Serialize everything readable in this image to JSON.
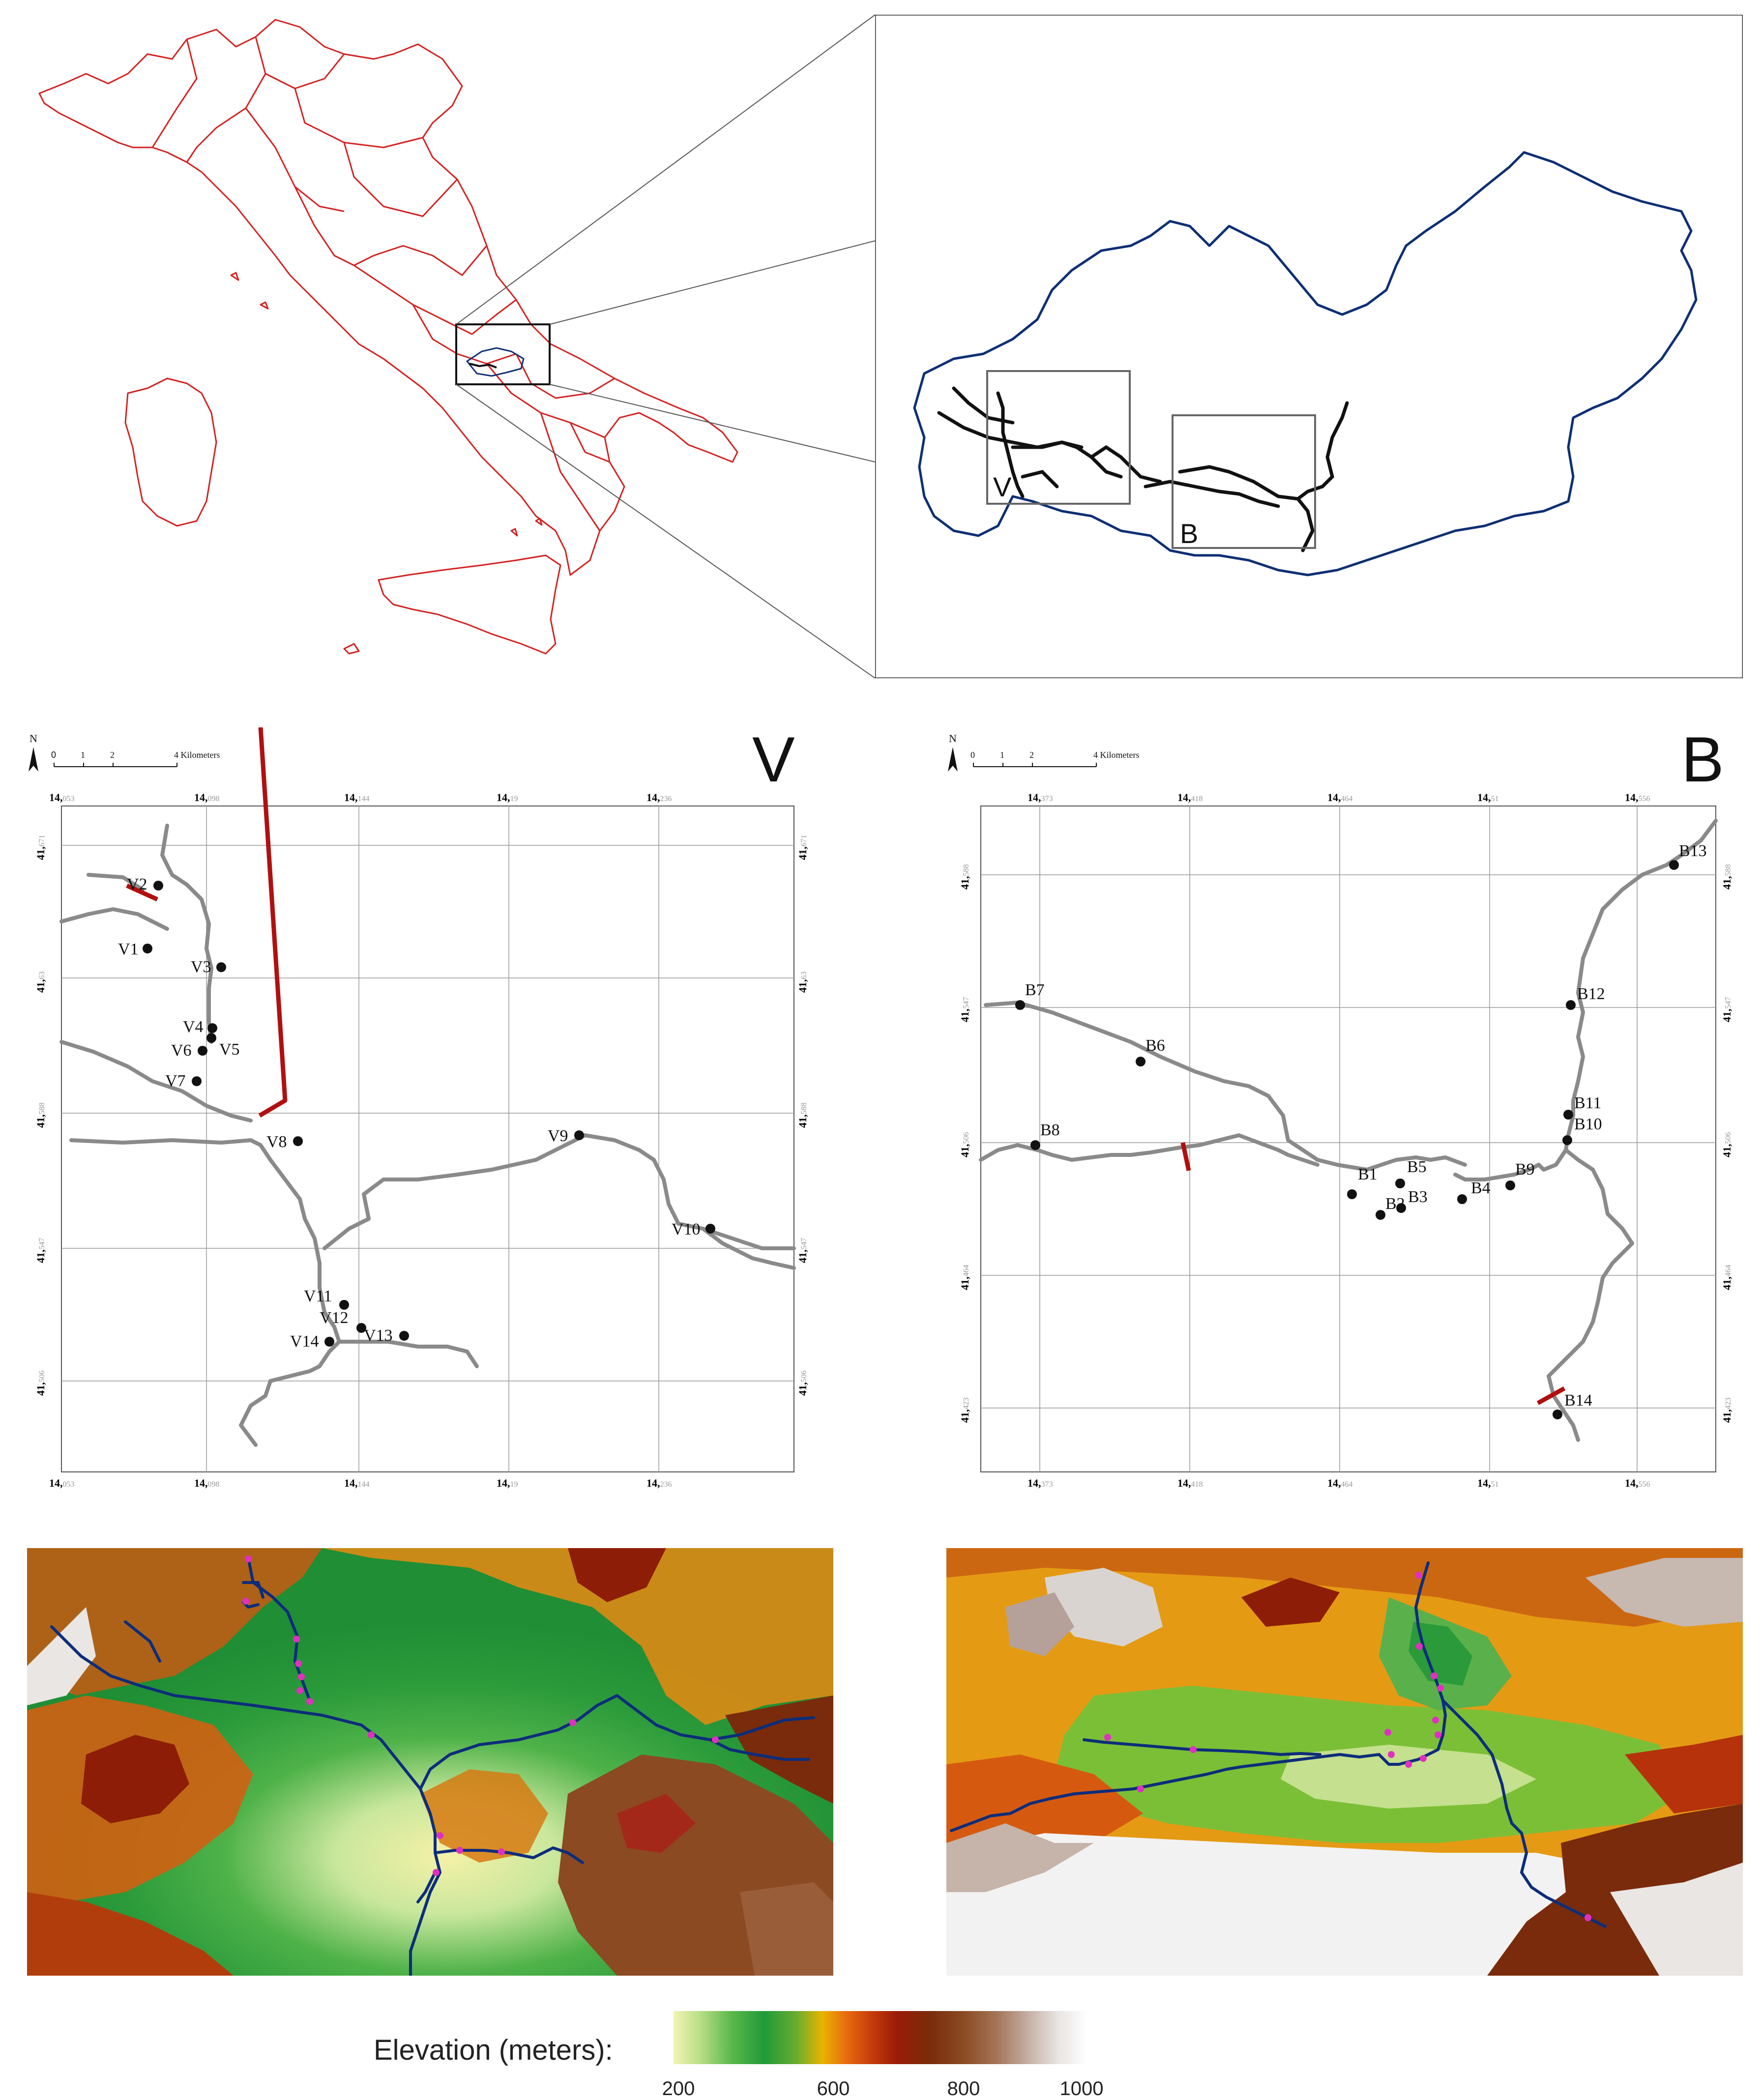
{
  "figure": {
    "inset_label_v": "V",
    "inset_label_b": "B"
  },
  "panel_v": {
    "big_label": "V",
    "north": "N",
    "scale_ticks": [
      "0",
      "1",
      "2",
      "4 Kilometers"
    ],
    "x_ticks": [
      {
        "deg": "14,",
        "frac": "053"
      },
      {
        "deg": "14,",
        "frac": "098"
      },
      {
        "deg": "14,",
        "frac": "144"
      },
      {
        "deg": "14,",
        "frac": "19"
      },
      {
        "deg": "14,",
        "frac": "236"
      }
    ],
    "y_ticks": [
      {
        "deg": "41,",
        "frac": "671"
      },
      {
        "deg": "41,",
        "frac": "63"
      },
      {
        "deg": "41,",
        "frac": "588"
      },
      {
        "deg": "41,",
        "frac": "547"
      },
      {
        "deg": "41,",
        "frac": "506"
      }
    ],
    "sites": [
      "V1",
      "V2",
      "V3",
      "V4",
      "V5",
      "V6",
      "V7",
      "V8",
      "V9",
      "V10",
      "V11",
      "V12",
      "V13",
      "V14"
    ]
  },
  "panel_b": {
    "big_label": "B",
    "north": "N",
    "scale_ticks": [
      "0",
      "1",
      "2",
      "4 Kilometers"
    ],
    "x_ticks": [
      {
        "deg": "14,",
        "frac": "373"
      },
      {
        "deg": "14,",
        "frac": "418"
      },
      {
        "deg": "14,",
        "frac": "464"
      },
      {
        "deg": "14,",
        "frac": "51"
      },
      {
        "deg": "14,",
        "frac": "556"
      }
    ],
    "y_ticks": [
      {
        "deg": "41,",
        "frac": "588"
      },
      {
        "deg": "41,",
        "frac": "547"
      },
      {
        "deg": "41,",
        "frac": "506"
      },
      {
        "deg": "41,",
        "frac": "464"
      },
      {
        "deg": "41,",
        "frac": "423"
      }
    ],
    "sites": [
      "B1",
      "B2",
      "B3",
      "B4",
      "B5",
      "B6",
      "B7",
      "B8",
      "B9",
      "B10",
      "B11",
      "B12",
      "B13",
      "B14"
    ]
  },
  "legend": {
    "title": "Elevation (meters):",
    "ticks": [
      "200",
      "600",
      "800",
      "1000"
    ]
  },
  "colors": {
    "italy_border": "#d42020",
    "basin_border": "#0e2f74",
    "river_dark": "#0d2d7a",
    "river_grey": "#8a8a8a",
    "dam_red": "#b01010",
    "site_magenta": "#e030c0"
  }
}
